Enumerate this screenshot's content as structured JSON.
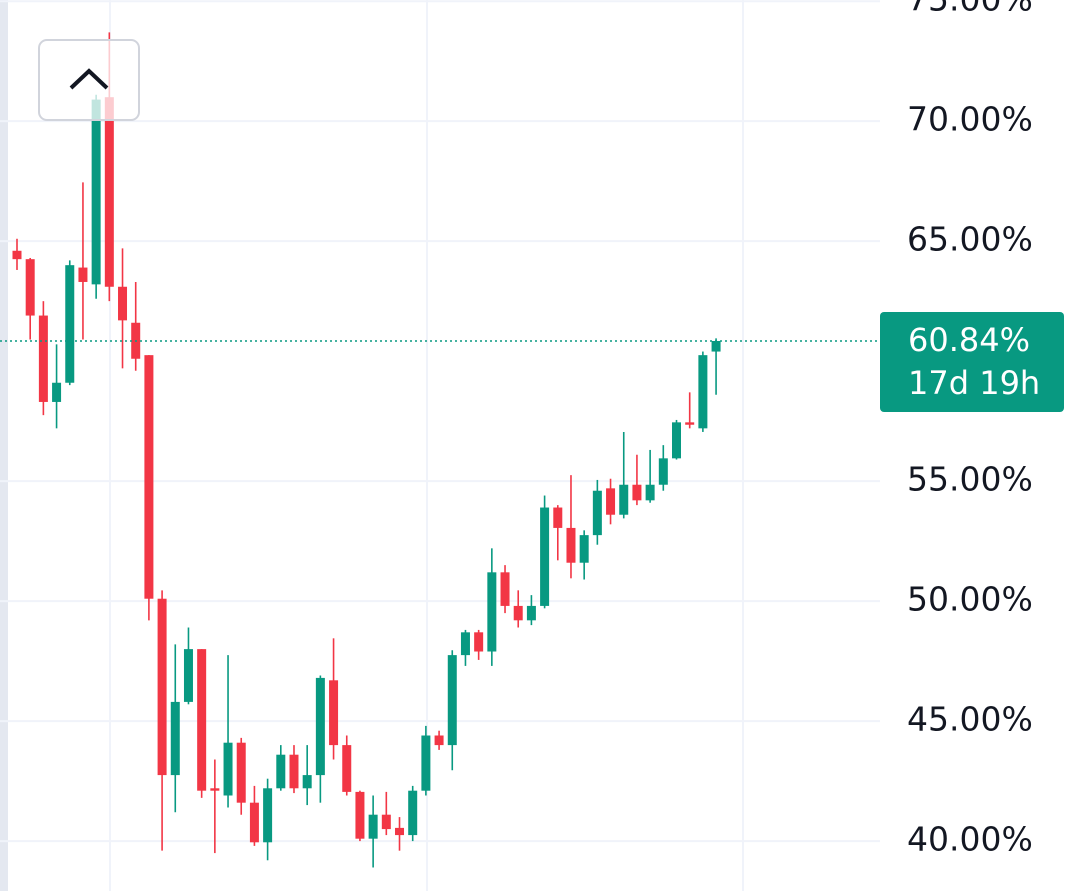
{
  "chart_data": {
    "type": "candlestick",
    "up_color": "#089981",
    "down_color": "#f23645",
    "ylim": [
      37.92,
      75.05
    ],
    "yticks": [
      {
        "value": 75,
        "label": "75.00%"
      },
      {
        "value": 70,
        "label": "70.00%"
      },
      {
        "value": 65,
        "label": "65.00%"
      },
      {
        "value": 55,
        "label": "55.00%"
      },
      {
        "value": 50,
        "label": "50.00%"
      },
      {
        "value": 45,
        "label": "45.00%"
      },
      {
        "value": 40,
        "label": "40.00%"
      }
    ],
    "grid": true,
    "last_price": {
      "value": 60.84,
      "label": "60.84%",
      "countdown": "17d 19h",
      "color": "#089981"
    },
    "open": [
      64.6,
      64.25,
      61.9,
      58.3,
      59.1,
      63.9,
      63.2,
      71.0,
      63.1,
      61.6,
      60.25,
      50.1,
      42.75,
      45.8,
      48.0,
      42.2,
      41.9,
      44.1,
      41.6,
      39.95,
      42.2,
      43.6,
      42.2,
      42.75,
      46.7,
      44.0,
      42.05,
      40.1,
      41.1,
      40.55,
      40.25,
      42.1,
      44.4,
      44.0,
      47.75,
      48.7,
      47.9,
      51.2,
      49.8,
      49.2,
      49.8,
      53.9,
      53.05,
      51.6,
      52.75,
      54.7,
      53.6,
      54.85,
      54.2,
      54.85,
      55.95,
      57.45,
      57.2,
      60.4
    ],
    "high": [
      65.1,
      64.3,
      62.5,
      60.7,
      64.2,
      67.45,
      71.1,
      73.7,
      64.7,
      63.3,
      60.25,
      50.45,
      48.2,
      48.9,
      48.0,
      43.4,
      47.75,
      44.3,
      42.3,
      42.6,
      44.0,
      44.0,
      44.0,
      46.9,
      48.45,
      44.4,
      42.1,
      41.9,
      42.05,
      41.0,
      42.3,
      44.8,
      44.6,
      47.95,
      48.8,
      48.8,
      52.2,
      51.5,
      50.45,
      50.25,
      54.4,
      54.0,
      55.25,
      52.95,
      55.05,
      55.1,
      57.05,
      56.1,
      56.3,
      56.5,
      57.55,
      58.7,
      60.4,
      60.95
    ],
    "low": [
      63.8,
      60.9,
      57.75,
      57.2,
      59.0,
      60.9,
      62.6,
      62.5,
      59.7,
      59.6,
      49.2,
      39.6,
      41.2,
      45.7,
      41.8,
      39.5,
      41.4,
      41.1,
      39.8,
      39.2,
      42.1,
      42.0,
      41.5,
      41.6,
      43.4,
      41.9,
      40.0,
      38.9,
      40.25,
      39.6,
      40.0,
      41.9,
      43.8,
      42.95,
      47.3,
      47.55,
      47.3,
      49.5,
      48.9,
      49.0,
      49.7,
      51.7,
      50.95,
      50.9,
      52.35,
      53.2,
      53.45,
      54.0,
      54.1,
      54.6,
      55.9,
      57.2,
      57.05,
      58.6
    ],
    "close": [
      64.25,
      61.9,
      58.3,
      59.1,
      64.0,
      63.3,
      70.9,
      63.1,
      61.7,
      60.1,
      50.1,
      42.75,
      45.8,
      48.0,
      42.1,
      42.1,
      44.1,
      41.6,
      39.95,
      42.2,
      43.6,
      42.2,
      42.75,
      46.8,
      44.0,
      42.05,
      40.1,
      41.1,
      40.5,
      40.25,
      42.1,
      44.4,
      44.0,
      47.75,
      48.7,
      47.9,
      51.2,
      49.8,
      49.2,
      49.8,
      53.9,
      53.05,
      51.6,
      52.75,
      54.6,
      53.6,
      54.85,
      54.2,
      54.85,
      55.95,
      57.45,
      57.35,
      60.25,
      60.84
    ]
  }
}
